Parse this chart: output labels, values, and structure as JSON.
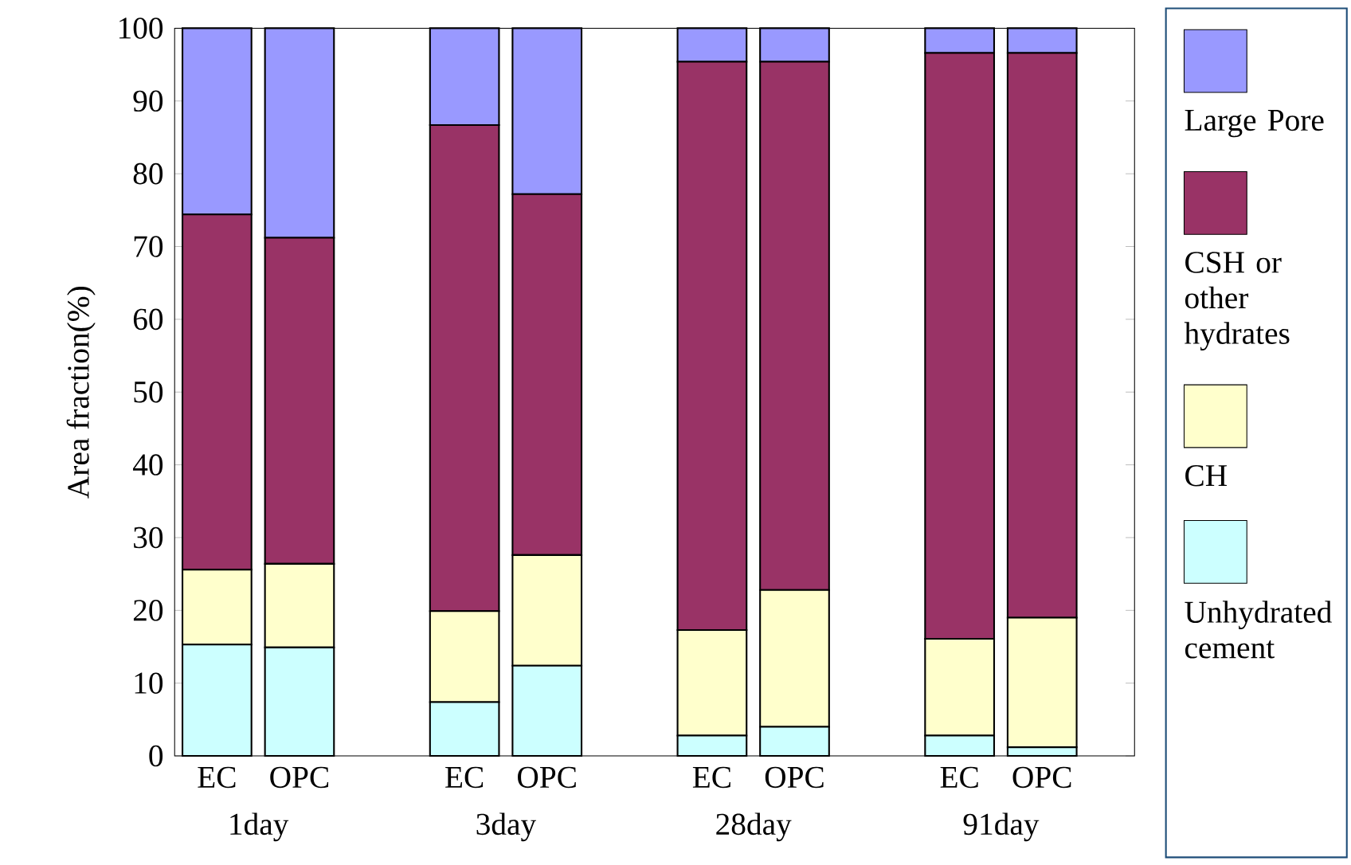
{
  "chart_data": {
    "type": "bar",
    "stacked": true,
    "ylabel": "Area fraction(%)",
    "categories": [
      "EC",
      "OPC",
      null,
      "EC",
      "OPC",
      null,
      "EC",
      "OPC",
      null,
      "EC",
      "OPC"
    ],
    "series": [
      {
        "name": "Unhydrated cement",
        "color": "#ccffff",
        "values": [
          15.3,
          14.9,
          null,
          7.4,
          12.4,
          null,
          2.8,
          4.0,
          null,
          2.8,
          1.2
        ]
      },
      {
        "name": "CH",
        "color": "#ffffcc",
        "values": [
          10.3,
          11.5,
          null,
          12.5,
          15.2,
          null,
          14.5,
          18.8,
          null,
          13.3,
          17.8
        ]
      },
      {
        "name": "CSH or other hydrates",
        "color": "#993366",
        "values": [
          48.8,
          44.8,
          null,
          66.8,
          49.6,
          null,
          78.1,
          72.6,
          null,
          80.5,
          77.6
        ]
      },
      {
        "name": "Large Pore",
        "color": "#9999ff",
        "values": [
          25.6,
          28.8,
          null,
          13.3,
          22.8,
          null,
          4.6,
          4.6,
          null,
          3.4,
          3.4
        ]
      }
    ],
    "annotations": [
      "1day",
      "3day",
      "28day",
      "91day"
    ],
    "ylim": [
      0,
      100
    ],
    "yticks": [
      0,
      10,
      20,
      30,
      40,
      50,
      60,
      70,
      80,
      90,
      100
    ],
    "grid": false,
    "legend": "right"
  }
}
